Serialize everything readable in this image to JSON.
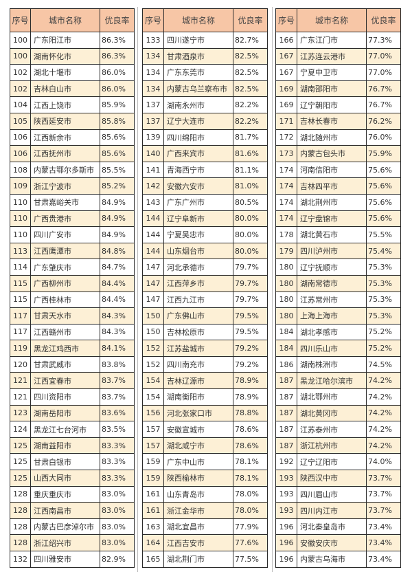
{
  "headers": {
    "seq": "序号",
    "name": "城市名称",
    "rate": "优良率"
  },
  "colors": {
    "header": "#f7c6a6",
    "alt_row": "#fdf0d6",
    "border": "#2a2a2a"
  },
  "tables": [
    {
      "rows": [
        [
          "100",
          "广东阳江市",
          "86.3%"
        ],
        [
          "100",
          "湖南怀化市",
          "86.3%"
        ],
        [
          "102",
          "湖北十堰市",
          "86.0%"
        ],
        [
          "102",
          "吉林白山市",
          "86.0%"
        ],
        [
          "104",
          "江西上饶市",
          "85.9%"
        ],
        [
          "105",
          "陕西延安市",
          "85.8%"
        ],
        [
          "106",
          "江西新余市",
          "85.6%"
        ],
        [
          "106",
          "江西抚州市",
          "85.6%"
        ],
        [
          "108",
          "内蒙古鄂尔多斯市",
          "85.5%"
        ],
        [
          "109",
          "浙江宁波市",
          "85.2%"
        ],
        [
          "110",
          "甘肃嘉峪关市",
          "84.9%"
        ],
        [
          "110",
          "广西贵港市",
          "84.9%"
        ],
        [
          "110",
          "四川广安市",
          "84.9%"
        ],
        [
          "113",
          "江西鹰潭市",
          "84.8%"
        ],
        [
          "114",
          "广东肇庆市",
          "84.7%"
        ],
        [
          "115",
          "广西柳州市",
          "84.4%"
        ],
        [
          "115",
          "广西桂林市",
          "84.4%"
        ],
        [
          "117",
          "甘肃天水市",
          "84.3%"
        ],
        [
          "117",
          "江西赣州市",
          "84.3%"
        ],
        [
          "119",
          "黑龙江鸡西市",
          "84.1%"
        ],
        [
          "120",
          "甘肃武威市",
          "83.8%"
        ],
        [
          "121",
          "江西宜春市",
          "83.7%"
        ],
        [
          "121",
          "四川资阳市",
          "83.7%"
        ],
        [
          "123",
          "湖南岳阳市",
          "83.6%"
        ],
        [
          "124",
          "黑龙江七台河市",
          "83.5%"
        ],
        [
          "125",
          "湖南益阳市",
          "83.3%"
        ],
        [
          "125",
          "甘肃白银市",
          "83.3%"
        ],
        [
          "125",
          "山西大同市",
          "83.3%"
        ],
        [
          "128",
          "重庆重庆市",
          "83.0%"
        ],
        [
          "128",
          "江西南昌市",
          "83.0%"
        ],
        [
          "128",
          "内蒙古巴彦淖尔市",
          "83.0%"
        ],
        [
          "128",
          "浙江绍兴市",
          "83.0%"
        ],
        [
          "132",
          "四川雅安市",
          "82.9%"
        ]
      ]
    },
    {
      "rows": [
        [
          "133",
          "四川遂宁市",
          "82.7%"
        ],
        [
          "134",
          "甘肃酒泉市",
          "82.5%"
        ],
        [
          "134",
          "广东东莞市",
          "82.5%"
        ],
        [
          "134",
          "内蒙古乌兰察布市",
          "82.5%"
        ],
        [
          "137",
          "湖南永州市",
          "82.2%"
        ],
        [
          "137",
          "辽宁大连市",
          "82.2%"
        ],
        [
          "139",
          "四川绵阳市",
          "81.7%"
        ],
        [
          "140",
          "广西来宾市",
          "81.6%"
        ],
        [
          "141",
          "青海西宁市",
          "81.1%"
        ],
        [
          "142",
          "安徽六安市",
          "81.0%"
        ],
        [
          "143",
          "广东广州市",
          "80.5%"
        ],
        [
          "144",
          "辽宁阜新市",
          "80.0%"
        ],
        [
          "144",
          "宁夏吴忠市",
          "80.0%"
        ],
        [
          "144",
          "山东烟台市",
          "80.0%"
        ],
        [
          "147",
          "河北承德市",
          "79.7%"
        ],
        [
          "147",
          "江西萍乡市",
          "79.7%"
        ],
        [
          "147",
          "江西九江市",
          "79.7%"
        ],
        [
          "150",
          "广东佛山市",
          "79.5%"
        ],
        [
          "150",
          "吉林松原市",
          "79.5%"
        ],
        [
          "152",
          "江苏盐城市",
          "79.2%"
        ],
        [
          "152",
          "四川南充市",
          "79.2%"
        ],
        [
          "154",
          "吉林辽源市",
          "78.9%"
        ],
        [
          "154",
          "湖南衡阳市",
          "78.9%"
        ],
        [
          "156",
          "河北张家口市",
          "78.8%"
        ],
        [
          "157",
          "安徽宣城市",
          "78.6%"
        ],
        [
          "157",
          "湖北咸宁市",
          "78.6%"
        ],
        [
          "159",
          "广东中山市",
          "78.1%"
        ],
        [
          "159",
          "陕西榆林市",
          "78.1%"
        ],
        [
          "161",
          "山东青岛市",
          "78.0%"
        ],
        [
          "161",
          "浙江金华市",
          "78.0%"
        ],
        [
          "163",
          "湖北宜昌市",
          "77.9%"
        ],
        [
          "164",
          "江西吉安市",
          "77.6%"
        ],
        [
          "165",
          "湖北荆门市",
          "77.5%"
        ]
      ]
    },
    {
      "rows": [
        [
          "166",
          "广东江门市",
          "77.3%"
        ],
        [
          "167",
          "江苏连云港市",
          "77.0%"
        ],
        [
          "167",
          "宁夏中卫市",
          "77.0%"
        ],
        [
          "169",
          "湖南邵阳市",
          "76.7%"
        ],
        [
          "169",
          "辽宁朝阳市",
          "76.7%"
        ],
        [
          "171",
          "吉林长春市",
          "76.2%"
        ],
        [
          "172",
          "湖北随州市",
          "76.0%"
        ],
        [
          "173",
          "内蒙古包头市",
          "75.9%"
        ],
        [
          "174",
          "河南信阳市",
          "75.6%"
        ],
        [
          "174",
          "吉林四平市",
          "75.6%"
        ],
        [
          "174",
          "湖北荆州市",
          "75.6%"
        ],
        [
          "174",
          "辽宁盘锦市",
          "75.6%"
        ],
        [
          "178",
          "湖北黄石市",
          "75.5%"
        ],
        [
          "179",
          "四川泸州市",
          "75.4%"
        ],
        [
          "180",
          "辽宁抚顺市",
          "75.3%"
        ],
        [
          "180",
          "湖南常德市",
          "75.3%"
        ],
        [
          "180",
          "江苏常州市",
          "75.3%"
        ],
        [
          "180",
          "上海上海市",
          "75.3%"
        ],
        [
          "184",
          "湖北孝感市",
          "75.2%"
        ],
        [
          "184",
          "四川乐山市",
          "75.2%"
        ],
        [
          "186",
          "湖南株洲市",
          "74.5%"
        ],
        [
          "187",
          "黑龙江哈尔滨市",
          "74.2%"
        ],
        [
          "187",
          "湖北鄂州市",
          "74.2%"
        ],
        [
          "187",
          "湖北黄冈市",
          "74.2%"
        ],
        [
          "187",
          "江苏泰州市",
          "74.2%"
        ],
        [
          "187",
          "浙江杭州市",
          "74.2%"
        ],
        [
          "192",
          "辽宁辽阳市",
          "74.0%"
        ],
        [
          "193",
          "陕西汉中市",
          "73.7%"
        ],
        [
          "193",
          "四川眉山市",
          "73.7%"
        ],
        [
          "193",
          "四川内江市",
          "73.7%"
        ],
        [
          "196",
          "河北秦皇岛市",
          "73.4%"
        ],
        [
          "196",
          "安徽安庆市",
          "73.4%"
        ],
        [
          "196",
          "内蒙古乌海市",
          "73.4%"
        ]
      ]
    }
  ]
}
